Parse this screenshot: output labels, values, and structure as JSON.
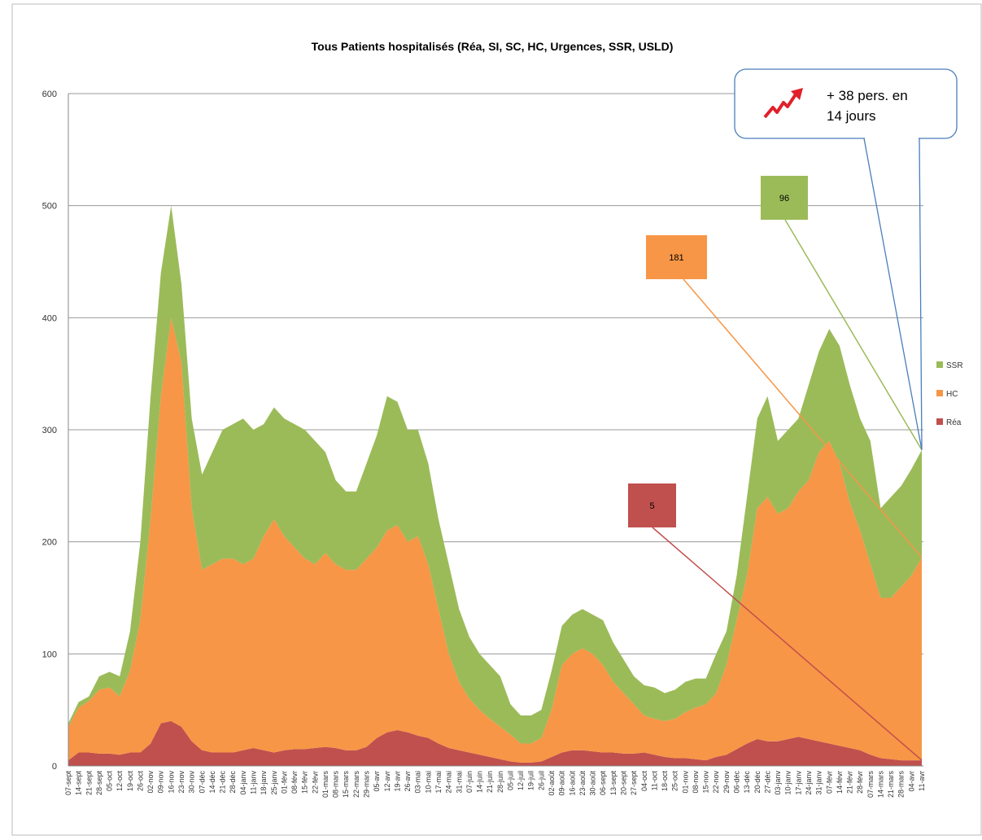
{
  "chart_data": {
    "type": "stacked_area",
    "title": "Tous Patients hospitalisés (Réa, SI, SC, HC, Urgences, SSR, USLD)",
    "annotation": [
      "+ 38  pers. en",
      "14 jours"
    ],
    "categories": [
      "07-sept",
      "14-sept",
      "21-sept",
      "28-sept",
      "05-oct",
      "12-oct",
      "19-oct",
      "26-oct",
      "02-nov",
      "09-nov",
      "16-nov",
      "23-nov",
      "30-nov",
      "07-déc",
      "14-déc",
      "21-déc",
      "28-déc",
      "04-janv",
      "11-janv",
      "18-janv",
      "25-janv",
      "01-févr",
      "08-févr",
      "15-févr",
      "22-févr",
      "01-mars",
      "08-mars",
      "15-mars",
      "22-mars",
      "29-mars",
      "05-avr",
      "12-avr",
      "19-avr",
      "26-avr",
      "03-mai",
      "10-mai",
      "17-mai",
      "24-mai",
      "31-mai",
      "07-juin",
      "14-juin",
      "21-juin",
      "28-juin",
      "05-juil",
      "12-juil",
      "19-juil",
      "26-juil",
      "02-août",
      "09-août",
      "16-août",
      "23-août",
      "30-août",
      "06-sept",
      "13-sept",
      "20-sept",
      "27-sept",
      "04-oct",
      "11-oct",
      "18-oct",
      "25-oct",
      "01-nov",
      "08-nov",
      "15-nov",
      "22-nov",
      "29-nov",
      "06-déc",
      "13-déc",
      "20-déc",
      "27-déc",
      "03-janv",
      "10-janv",
      "17-janv",
      "24-janv",
      "31-janv",
      "07-févr",
      "14-févr",
      "21-févr",
      "28-févr",
      "07-mars",
      "14-mars",
      "21-mars",
      "28-mars",
      "04-avr",
      "11-avr"
    ],
    "series": [
      {
        "name": "Réa",
        "color": "#c0504d",
        "values": [
          5,
          12,
          12,
          11,
          11,
          10,
          12,
          12,
          20,
          38,
          40,
          35,
          22,
          14,
          12,
          12,
          12,
          14,
          16,
          14,
          12,
          14,
          15,
          15,
          16,
          17,
          16,
          14,
          14,
          17,
          25,
          30,
          32,
          30,
          27,
          25,
          20,
          16,
          14,
          12,
          10,
          8,
          6,
          4,
          3,
          3,
          4,
          8,
          12,
          14,
          14,
          13,
          12,
          12,
          11,
          11,
          12,
          10,
          8,
          7,
          7,
          6,
          5,
          8,
          10,
          15,
          20,
          24,
          22,
          22,
          24,
          26,
          24,
          22,
          20,
          18,
          16,
          14,
          10,
          7,
          6,
          5,
          5,
          5
        ]
      },
      {
        "name": "HC",
        "color": "#f79646",
        "values": [
          30,
          40,
          46,
          57,
          59,
          52,
          73,
          118,
          200,
          292,
          360,
          325,
          208,
          161,
          168,
          173,
          173,
          166,
          169,
          191,
          208,
          191,
          180,
          170,
          164,
          173,
          164,
          161,
          161,
          168,
          170,
          180,
          183,
          170,
          178,
          155,
          120,
          84,
          61,
          48,
          40,
          34,
          29,
          24,
          17,
          17,
          21,
          42,
          78,
          86,
          91,
          87,
          78,
          63,
          54,
          44,
          33,
          32,
          32,
          35,
          41,
          46,
          50,
          57,
          80,
          115,
          150,
          206,
          218,
          203,
          206,
          219,
          231,
          258,
          270,
          252,
          219,
          196,
          170,
          143,
          144,
          155,
          165,
          181
        ]
      },
      {
        "name": "SSR",
        "color": "#9bbb59",
        "values": [
          3,
          5,
          4,
          12,
          14,
          18,
          35,
          70,
          110,
          110,
          100,
          70,
          80,
          85,
          100,
          115,
          120,
          130,
          115,
          100,
          100,
          105,
          110,
          115,
          110,
          90,
          75,
          70,
          70,
          85,
          100,
          120,
          110,
          100,
          95,
          90,
          80,
          80,
          65,
          55,
          50,
          48,
          45,
          27,
          25,
          25,
          25,
          35,
          35,
          35,
          35,
          35,
          40,
          35,
          30,
          25,
          27,
          28,
          25,
          26,
          27,
          26,
          23,
          35,
          30,
          40,
          70,
          80,
          90,
          65,
          70,
          65,
          85,
          90,
          100,
          105,
          105,
          100,
          110,
          80,
          90,
          90,
          95,
          96
        ]
      }
    ],
    "ylim": [
      0,
      600
    ],
    "yticks": [
      0,
      100,
      200,
      300,
      400,
      500,
      600
    ],
    "grid": true,
    "legend": "right"
  }
}
